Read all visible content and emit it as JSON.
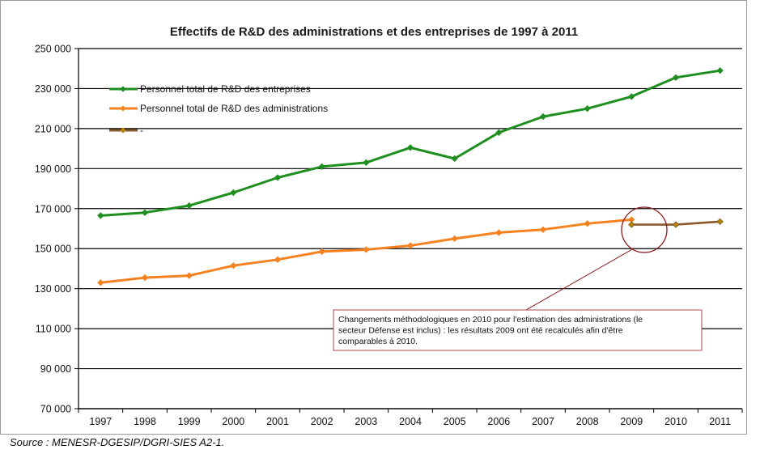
{
  "chart_data": {
    "type": "line",
    "title": "Effectifs de R&D des administrations et des entreprises de 1997 à 2011",
    "xlabel": "",
    "ylabel": "",
    "ylim": [
      70000,
      250000
    ],
    "yticks": [
      70000,
      90000,
      110000,
      130000,
      150000,
      170000,
      190000,
      210000,
      230000,
      250000
    ],
    "ytick_labels": [
      "70 000",
      "90 000",
      "110 000",
      "130 000",
      "150 000",
      "170 000",
      "190 000",
      "210 000",
      "230 000",
      "250 000"
    ],
    "categories": [
      "1997",
      "1998",
      "1999",
      "2000",
      "2001",
      "2002",
      "2003",
      "2004",
      "2005",
      "2006",
      "2007",
      "2008",
      "2009",
      "2010",
      "2011"
    ],
    "grid": "horizontal",
    "legend_position": "top-left",
    "series": [
      {
        "name": "Personnel total  de R&D des entreprises",
        "color": "#1e8f1e",
        "values": [
          166500,
          168000,
          171500,
          178000,
          185500,
          191000,
          193000,
          200500,
          195000,
          208000,
          216000,
          220000,
          226000,
          235500,
          239000
        ]
      },
      {
        "name": "Personnel total de R&D des administrations",
        "color": "#f58220",
        "values": [
          133000,
          135500,
          136500,
          141500,
          144500,
          148500,
          149500,
          151500,
          155000,
          158000,
          159500,
          162500,
          164500,
          null,
          null
        ]
      },
      {
        "name": "-",
        "color": "#8b5a2b",
        "values": [
          null,
          null,
          null,
          null,
          null,
          null,
          null,
          null,
          null,
          null,
          null,
          null,
          162000,
          162000,
          163500
        ]
      }
    ],
    "annotation": {
      "lines": [
        "Changements méthodologiques en 2010 pour l'estimation des administrations (le",
        "secteur Défense est inclus)  : les résultats 2009 ont été recalculés afin d'être",
        "comparables à 2010."
      ],
      "circle_color": "#8b1a1a"
    }
  },
  "source": "Source : MENESR-DGESIP/DGRI-SIES A2-1."
}
